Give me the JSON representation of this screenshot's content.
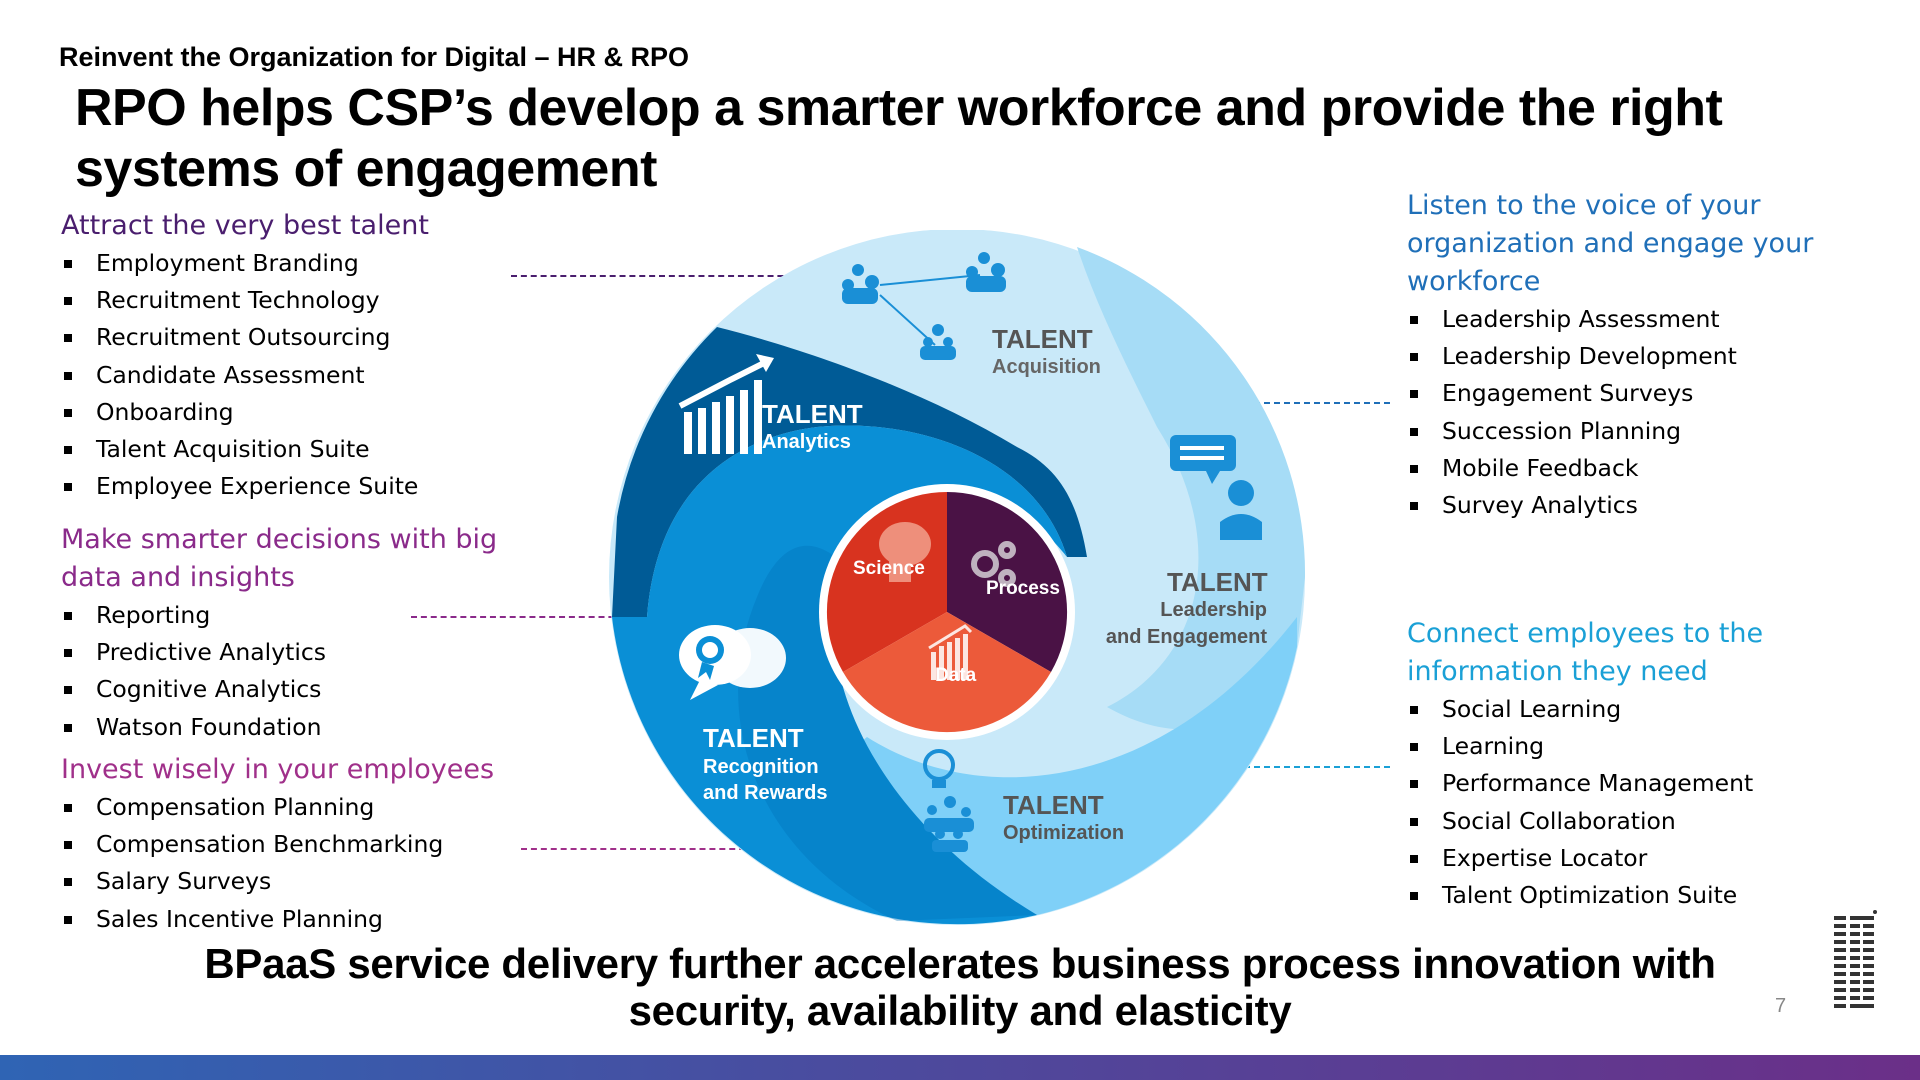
{
  "header": {
    "subtitle": "Reinvent the Organization for Digital – HR & RPO",
    "title": "RPO helps CSP’s develop a smarter workforce and provide the right systems of engagement"
  },
  "left": {
    "attract": {
      "heading": "Attract the very best talent",
      "color": "#4a1e6e",
      "items": [
        "Employment Branding",
        "Recruitment Technology",
        "Recruitment Outsourcing",
        "Candidate Assessment",
        "Onboarding",
        "Talent Acquisition Suite",
        "Employee Experience Suite"
      ]
    },
    "decisions": {
      "heading": "Make smarter decisions with big data and insights",
      "color": "#8a2a8a",
      "items": [
        "Reporting",
        "Predictive Analytics",
        "Cognitive Analytics",
        "Watson Foundation"
      ]
    },
    "invest": {
      "heading": "Invest wisely in your employees",
      "color": "#a0308a",
      "items": [
        "Compensation Planning",
        "Compensation Benchmarking",
        "Salary Surveys",
        "Sales Incentive Planning"
      ]
    }
  },
  "right": {
    "listen": {
      "heading": "Listen to the voice of your organization and engage your workforce",
      "color": "#1f6fb8",
      "items": [
        "Leadership Assessment",
        "Leadership Development",
        "Engagement Surveys",
        "Succession Planning",
        "Mobile Feedback",
        "Survey Analytics"
      ]
    },
    "connect": {
      "heading": "Connect employees to the information they need",
      "color": "#1aa0d6",
      "items": [
        "Social Learning",
        "Learning",
        "Performance Management",
        "Social Collaboration",
        "Expertise Locator",
        "Talent Optimization Suite"
      ]
    }
  },
  "diagram": {
    "acquisition": {
      "word": "TALENT",
      "sub": "Acquisition"
    },
    "analytics": {
      "word": "TALENT",
      "sub": "Analytics"
    },
    "leadership": {
      "word": "TALENT",
      "sub1": "Leadership",
      "sub2": "and Engagement"
    },
    "recognition": {
      "word": "TALENT",
      "sub1": "Recognition",
      "sub2": "and Rewards"
    },
    "optimization": {
      "word": "TALENT",
      "sub": "Optimization"
    },
    "core": {
      "science": "Science",
      "process": "Process",
      "data": "Data"
    },
    "colors": {
      "acquisition": "#c9e9f9",
      "leadership": "#a6dcf6",
      "optimization": "#7fd0f8",
      "recognition": "#0a8fd6",
      "analytics": "#005b96",
      "science": "#d8331f",
      "process": "#4a1245",
      "data": "#ec5a3a"
    },
    "icons": [
      "people-network-icon",
      "growth-chart-icon",
      "chat-person-icon",
      "award-speech-icon",
      "lightbulb-people-icon",
      "brain-icon",
      "gears-icon",
      "bar-chart-icon"
    ]
  },
  "footer": {
    "line1": "BPaaS service delivery further accelerates business process innovation with",
    "line2": "security, availability and elasticity"
  },
  "page_number": "7"
}
